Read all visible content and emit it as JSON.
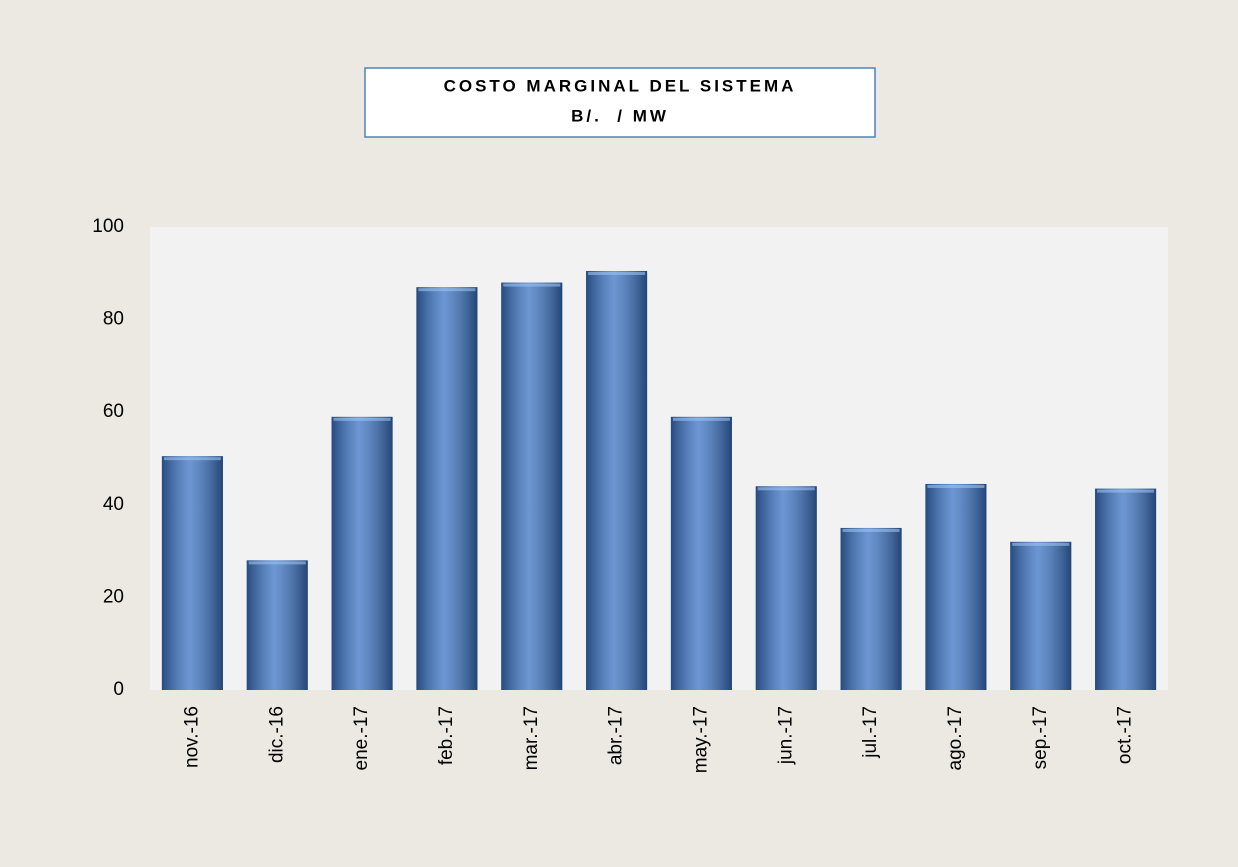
{
  "chart_data": {
    "type": "bar",
    "title": "COSTO MARGINAL DEL SISTEMA",
    "subtitle": "B/.  / MW",
    "categories": [
      "nov.-16",
      "dic.-16",
      "ene.-17",
      "feb.-17",
      "mar.-17",
      "abr.-17",
      "may.-17",
      "jun.-17",
      "jul.-17",
      "ago.-17",
      "sep.-17",
      "oct.-17"
    ],
    "values": [
      50.5,
      28,
      59,
      87,
      88,
      90.5,
      59,
      44,
      35,
      44.5,
      32,
      43.5
    ],
    "color": "#3b73c4",
    "ylim": [
      0,
      100
    ],
    "yticks": [
      0,
      20,
      40,
      60,
      80,
      100
    ],
    "grid": false
  }
}
